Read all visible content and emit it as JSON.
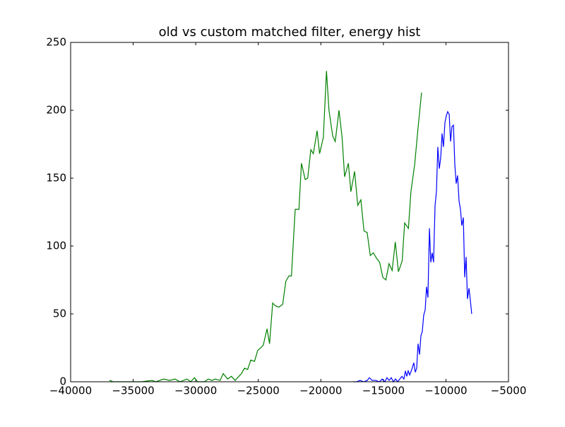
{
  "chart_data": {
    "type": "line",
    "title": "old vs custom matched filter, energy hist",
    "xlim": [
      -40000,
      -5000
    ],
    "ylim": [
      0,
      250
    ],
    "xticks": [
      {
        "value": -40000,
        "label": "−40000"
      },
      {
        "value": -35000,
        "label": "−35000"
      },
      {
        "value": -30000,
        "label": "−30000"
      },
      {
        "value": -25000,
        "label": "−25000"
      },
      {
        "value": -20000,
        "label": "−20000"
      },
      {
        "value": -15000,
        "label": "−15000"
      },
      {
        "value": -10000,
        "label": "−10000"
      },
      {
        "value": -5000,
        "label": "−5000"
      }
    ],
    "yticks": [
      0,
      50,
      100,
      150,
      200,
      250
    ],
    "grid": false,
    "series": [
      {
        "color": "#008000",
        "x": [
          -36900,
          -36600,
          -35500,
          -34350,
          -33500,
          -33200,
          -32550,
          -32100,
          -31650,
          -31250,
          -30700,
          -30400,
          -30100,
          -29850,
          -29300,
          -29000,
          -28700,
          -28450,
          -28050,
          -27800,
          -27450,
          -27150,
          -26850,
          -26550,
          -26350,
          -26100,
          -25850,
          -25600,
          -25300,
          -25050,
          -24800,
          -24600,
          -24300,
          -24100,
          -23850,
          -23650,
          -23350,
          -23050,
          -22800,
          -22550,
          -22350,
          -22050,
          -21750,
          -21550,
          -21250,
          -21050,
          -20800,
          -20600,
          -20300,
          -20100,
          -19800,
          -19550,
          -19350,
          -19050,
          -18850,
          -18550,
          -18300,
          -18100,
          -17800,
          -17600,
          -17300,
          -17050,
          -16800,
          -16550,
          -16300,
          -16050,
          -15800,
          -15550,
          -15300,
          -15050,
          -14800,
          -14550,
          -14300,
          -14050,
          -13800,
          -13500,
          -13300,
          -13000,
          -12800,
          -12500,
          -12250,
          -11950
        ],
        "values": [
          1,
          0,
          0,
          0,
          1,
          0,
          2,
          1,
          2,
          0,
          2,
          0,
          3,
          0,
          0,
          2,
          1,
          2,
          1,
          6,
          2,
          4,
          1,
          4,
          6,
          10,
          9,
          16,
          15,
          23,
          25,
          27,
          39,
          28,
          58,
          56,
          55,
          57,
          74,
          78,
          78,
          127,
          127,
          161,
          149,
          150,
          171,
          168,
          185,
          168,
          180,
          229,
          200,
          181,
          177,
          200,
          180,
          151,
          161,
          140,
          155,
          130,
          134,
          111,
          110,
          93,
          95,
          91,
          88,
          77,
          75,
          87,
          82,
          103,
          81,
          89,
          117,
          113,
          140,
          160,
          185,
          213
        ]
      },
      {
        "color": "#0000ff",
        "x": [
          -17420,
          -17140,
          -16860,
          -16570,
          -16290,
          -16120,
          -15900,
          -15610,
          -15330,
          -15100,
          -14880,
          -14710,
          -14540,
          -14370,
          -14200,
          -14030,
          -13860,
          -13690,
          -13520,
          -13360,
          -13240,
          -13130,
          -13020,
          -12900,
          -12730,
          -12570,
          -12450,
          -12340,
          -12230,
          -12110,
          -12000,
          -11890,
          -11780,
          -11660,
          -11550,
          -11440,
          -11320,
          -11210,
          -11100,
          -10990,
          -10870,
          -10760,
          -10650,
          -10530,
          -10420,
          -10310,
          -10200,
          -10080,
          -9970,
          -9860,
          -9740,
          -9630,
          -9520,
          -9400,
          -9290,
          -9180,
          -9070,
          -8950,
          -8840,
          -8730,
          -8610,
          -8500,
          -8390,
          -8280,
          -8160,
          -8050,
          -7940
        ],
        "values": [
          0,
          0,
          1,
          0,
          1,
          3,
          1,
          1,
          0,
          2,
          0,
          3,
          1,
          3,
          0,
          2,
          0,
          2,
          4,
          2,
          8,
          4,
          8,
          5,
          9,
          14,
          7,
          10,
          28,
          20,
          34,
          37,
          49,
          53,
          70,
          62,
          113,
          88,
          95,
          88,
          130,
          140,
          173,
          157,
          165,
          183,
          173,
          191,
          196,
          199,
          197,
          177,
          188,
          189,
          160,
          146,
          152,
          133,
          127,
          115,
          121,
          77,
          92,
          61,
          69,
          60,
          50
        ]
      }
    ]
  }
}
